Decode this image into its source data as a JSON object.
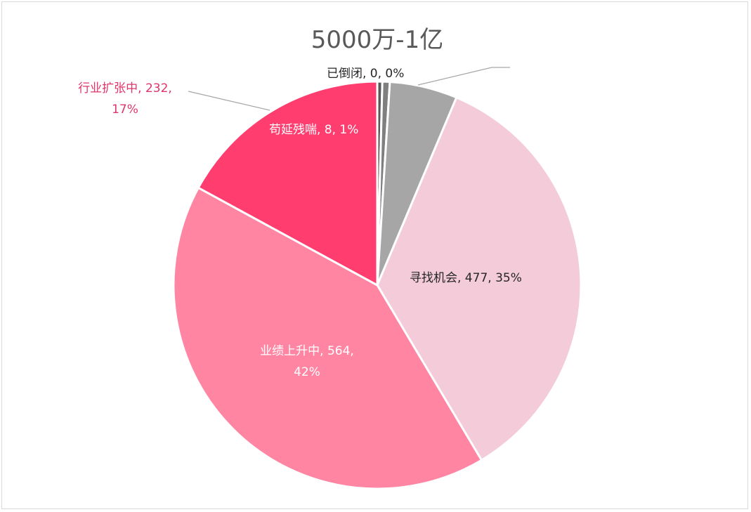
{
  "chart_data": {
    "type": "pie",
    "title": "5000万-1亿",
    "slices": [
      {
        "label": "已倒闭",
        "value": 0,
        "percent": "0%",
        "color": "#595959",
        "text": "已倒闭, 0, 0%",
        "text_lines": [
          "已倒闭, 0, 0%"
        ],
        "label_color": "#262626"
      },
      {
        "label": "苟延残喘",
        "value": 8,
        "percent": "1%",
        "color": "#7f7f7f",
        "text": "苟延残喘, 8, 1%",
        "text_lines": [
          "苟延残喘, 8, 1%"
        ],
        "label_color": "#ffffff"
      },
      {
        "label": "",
        "value": 73,
        "percent": "",
        "color": "#a6a6a6",
        "text": "",
        "text_lines": [],
        "label_color": "#ffffff"
      },
      {
        "label": "寻找机会",
        "value": 477,
        "percent": "35%",
        "color": "#f4ccd9",
        "text": "寻找机会, 477, 35%",
        "text_lines": [
          "寻找机会, 477, 35%"
        ],
        "label_color": "#262626"
      },
      {
        "label": "业绩上升中",
        "value": 564,
        "percent": "42%",
        "color": "#ff85a2",
        "text": "业绩上升中, 564, 42%",
        "text_lines": [
          "业绩上升中, 564,",
          "42%"
        ],
        "label_color": "#ffffff"
      },
      {
        "label": "行业扩张中",
        "value": 232,
        "percent": "17%",
        "color": "#ff3d6e",
        "text": "行业扩张中, 232, 17%",
        "text_lines": [
          "行业扩张中, 232,",
          "17%"
        ],
        "label_color": "#e0356a"
      }
    ],
    "legend": "none"
  }
}
